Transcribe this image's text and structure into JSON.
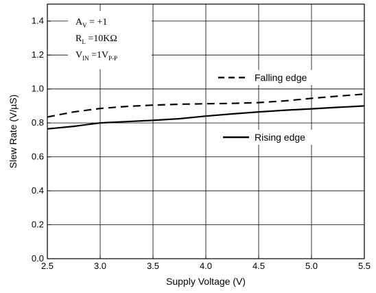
{
  "chart_data": {
    "type": "line",
    "title": "",
    "xlabel": "Supply Voltage (V)",
    "ylabel": "Slew Rate (V/µS)",
    "xlim": [
      2.5,
      5.5
    ],
    "ylim": [
      0.0,
      1.5
    ],
    "x_ticks": [
      "2.5",
      "3.0",
      "3.5",
      "4.0",
      "4.5",
      "5.0",
      "5.5"
    ],
    "y_ticks": [
      "0.0",
      "0.2",
      "0.4",
      "0.6",
      "0.8",
      "1.0",
      "1.2",
      "1.4"
    ],
    "grid": true,
    "series": [
      {
        "name": "Falling edge",
        "style": "dashed",
        "x": [
          2.5,
          2.75,
          3.0,
          3.25,
          3.5,
          3.75,
          4.0,
          4.25,
          4.5,
          4.75,
          5.0,
          5.25,
          5.5
        ],
        "y": [
          0.835,
          0.865,
          0.885,
          0.897,
          0.905,
          0.91,
          0.913,
          0.915,
          0.92,
          0.93,
          0.945,
          0.958,
          0.97
        ]
      },
      {
        "name": "Rising edge",
        "style": "solid",
        "x": [
          2.5,
          2.75,
          3.0,
          3.25,
          3.5,
          3.75,
          4.0,
          4.25,
          4.5,
          4.75,
          5.0,
          5.25,
          5.5
        ],
        "y": [
          0.765,
          0.78,
          0.8,
          0.808,
          0.815,
          0.825,
          0.84,
          0.853,
          0.865,
          0.875,
          0.883,
          0.892,
          0.9
        ]
      }
    ],
    "conditions": [
      {
        "main": "A",
        "sub": "V",
        "rest": " = +1"
      },
      {
        "main": "R",
        "sub": "L",
        "rest": " =10KΩ"
      },
      {
        "main": "V",
        "sub": "IN",
        "rest": " =1V",
        "sub2": "P-P"
      }
    ]
  }
}
